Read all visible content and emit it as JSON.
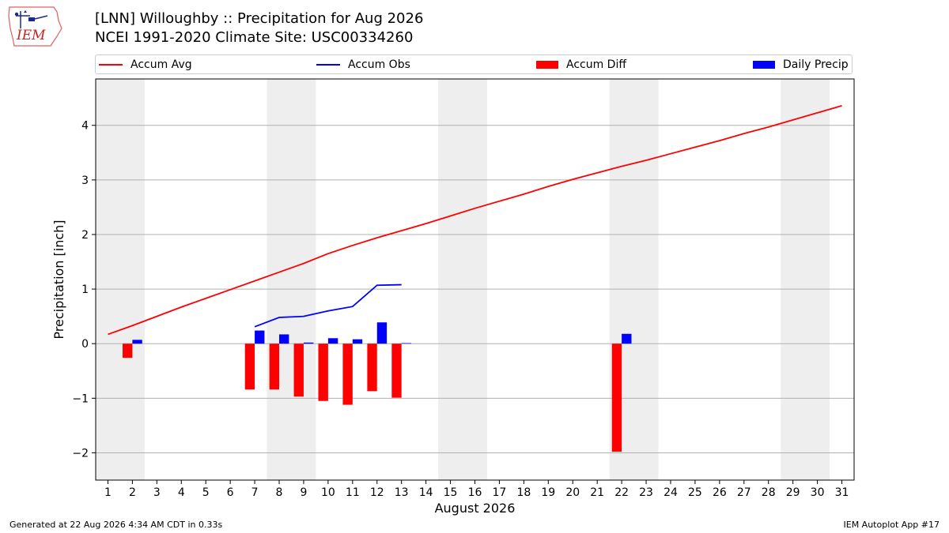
{
  "header": {
    "logo_text": "IEM",
    "title_line1": "[LNN] Willoughby :: Precipitation for Aug 2026",
    "title_line2": "NCEI 1991-2020 Climate Site: USC00334260"
  },
  "legend": [
    {
      "label": "Accum Avg",
      "kind": "line",
      "color": "#ff0000"
    },
    {
      "label": "Accum Obs",
      "kind": "line",
      "color": "#0000ff"
    },
    {
      "label": "Accum Diff",
      "kind": "box",
      "color": "#ff0000"
    },
    {
      "label": "Daily Precip",
      "kind": "box",
      "color": "#0000ff"
    }
  ],
  "footer": {
    "left": "Generated at 22 Aug 2026 4:34 AM CDT in 0.33s",
    "right": "IEM Autoplot App #17"
  },
  "chart_data": {
    "type": "bar",
    "xlabel": "August 2026",
    "ylabel": "Precipitation [inch]",
    "xlim": [
      0.5,
      31.5
    ],
    "ylim": [
      -2.5,
      4.85
    ],
    "x_ticks": [
      1,
      2,
      3,
      4,
      5,
      6,
      7,
      8,
      9,
      10,
      11,
      12,
      13,
      14,
      15,
      16,
      17,
      18,
      19,
      20,
      21,
      22,
      23,
      24,
      25,
      26,
      27,
      28,
      29,
      30,
      31
    ],
    "y_ticks": [
      -2,
      -1,
      0,
      1,
      2,
      3,
      4
    ],
    "y_tick_labels": [
      "−2",
      "−1",
      "0",
      "1",
      "2",
      "3",
      "4"
    ],
    "grid": "horizontal",
    "weekend_shading": [
      [
        0.5,
        2.5
      ],
      [
        7.5,
        9.5
      ],
      [
        14.5,
        16.5
      ],
      [
        21.5,
        23.5
      ],
      [
        28.5,
        30.5
      ]
    ],
    "series": [
      {
        "name": "Accum Avg",
        "kind": "line",
        "color": "#ff0000",
        "x": [
          1,
          2,
          3,
          4,
          5,
          6,
          7,
          8,
          9,
          10,
          11,
          12,
          13,
          14,
          15,
          16,
          17,
          18,
          19,
          20,
          21,
          22,
          23,
          24,
          25,
          26,
          27,
          28,
          29,
          30,
          31
        ],
        "values": [
          0.17,
          0.33,
          0.5,
          0.67,
          0.83,
          0.99,
          1.15,
          1.31,
          1.47,
          1.65,
          1.8,
          1.94,
          2.07,
          2.2,
          2.34,
          2.48,
          2.61,
          2.74,
          2.88,
          3.01,
          3.13,
          3.25,
          3.36,
          3.48,
          3.6,
          3.72,
          3.85,
          3.97,
          4.1,
          4.23,
          4.36
        ]
      },
      {
        "name": "Accum Obs",
        "kind": "line",
        "color": "#0000ff",
        "x": [
          7,
          8,
          9,
          10,
          11,
          12,
          13
        ],
        "values": [
          0.31,
          0.48,
          0.5,
          0.6,
          0.68,
          1.07,
          1.08
        ]
      },
      {
        "name": "Accum Diff",
        "kind": "bar",
        "color": "#ff0000",
        "x": [
          2,
          7,
          8,
          9,
          10,
          11,
          12,
          13,
          22
        ],
        "values": [
          -0.26,
          -0.84,
          -0.84,
          -0.97,
          -1.05,
          -1.12,
          -0.87,
          -0.99,
          -1.98
        ]
      },
      {
        "name": "Daily Precip",
        "kind": "bar",
        "color": "#0000ff",
        "x": [
          2,
          7,
          8,
          9,
          10,
          11,
          12,
          13,
          22
        ],
        "values": [
          0.07,
          0.24,
          0.17,
          0.02,
          0.1,
          0.08,
          0.39,
          0.01,
          0.18
        ]
      }
    ]
  }
}
